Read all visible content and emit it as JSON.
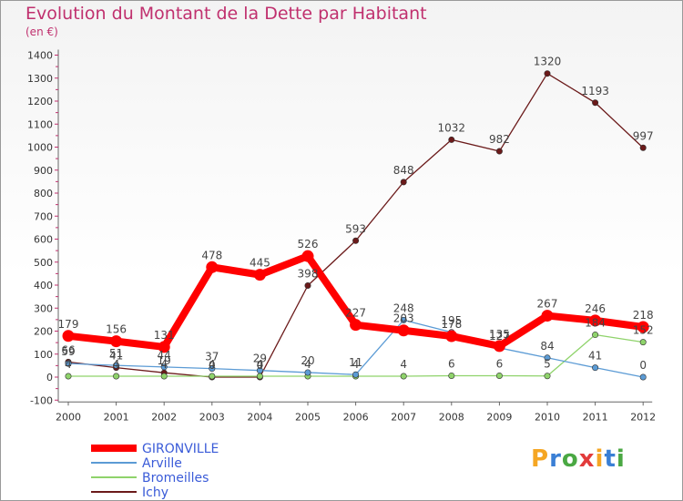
{
  "chart_data": {
    "type": "line",
    "title": "Evolution du Montant de la Dette par Habitant",
    "subtitle": "(en €)",
    "x": [
      "2000",
      "2001",
      "2002",
      "2003",
      "2004",
      "2005",
      "2006",
      "2007",
      "2008",
      "2009",
      "2010",
      "2011",
      "2012"
    ],
    "ylim": [
      -100,
      1400
    ],
    "yticks": [
      -100,
      0,
      100,
      200,
      300,
      400,
      500,
      600,
      700,
      800,
      900,
      1000,
      1100,
      1200,
      1300,
      1400
    ],
    "grid": false,
    "legend_position": "bottom-left",
    "series": [
      {
        "name": "GIRONVILLE",
        "color": "#ff0000",
        "values": [
          179,
          156,
          131,
          478,
          445,
          526,
          227,
          203,
          178,
          135,
          267,
          246,
          218
        ]
      },
      {
        "name": "Arville",
        "color": "#5b9bd5",
        "values": [
          59,
          51,
          44,
          37,
          29,
          20,
          11,
          248,
          195,
          127,
          84,
          41,
          0
        ]
      },
      {
        "name": "Bromeilles",
        "color": "#8fd36b",
        "values": [
          4,
          4,
          4,
          4,
          4,
          4,
          4,
          4,
          6,
          6,
          5,
          184,
          152
        ]
      },
      {
        "name": "Ichy",
        "color": "#6b1a1a",
        "values": [
          66,
          41,
          19,
          0,
          0,
          398,
          593,
          848,
          1032,
          982,
          1320,
          1193,
          997
        ]
      }
    ]
  },
  "logo": {
    "text": "Proxiti",
    "colors": [
      "#f5a623",
      "#3a7fd5",
      "#4aa843",
      "#e23b3b",
      "#f5a623",
      "#3a7fd5",
      "#4aa843"
    ]
  }
}
